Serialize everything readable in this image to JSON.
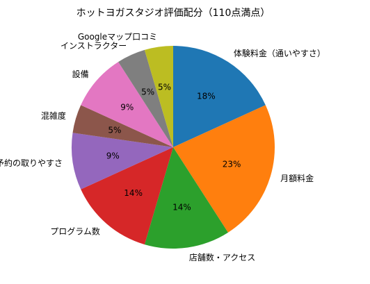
{
  "chart_data": {
    "type": "pie",
    "title": "ホットヨガスタジオ評価配分（110点満点）",
    "start_angle_deg": 90,
    "direction": "clockwise",
    "slices": [
      {
        "label": "体験料金（通いやすさ）",
        "value": 20,
        "pct_label": "18%",
        "color": "#1f77b4"
      },
      {
        "label": "月額料金",
        "value": 25,
        "pct_label": "23%",
        "color": "#ff7f0e"
      },
      {
        "label": "店舗数・アクセス",
        "value": 15,
        "pct_label": "14%",
        "color": "#2ca02c"
      },
      {
        "label": "プログラム数",
        "value": 15,
        "pct_label": "14%",
        "color": "#d62728"
      },
      {
        "label": "予約の取りやすさ",
        "value": 10,
        "pct_label": "9%",
        "color": "#9467bd"
      },
      {
        "label": "混雑度",
        "value": 5,
        "pct_label": "5%",
        "color": "#8c564b"
      },
      {
        "label": "設備",
        "value": 10,
        "pct_label": "9%",
        "color": "#e377c2"
      },
      {
        "label": "インストラクター",
        "value": 5,
        "pct_label": "5%",
        "color": "#7f7f7f"
      },
      {
        "label": "Googleマップ口コミ",
        "value": 5,
        "pct_label": "5%",
        "color": "#bcbd22"
      }
    ]
  }
}
